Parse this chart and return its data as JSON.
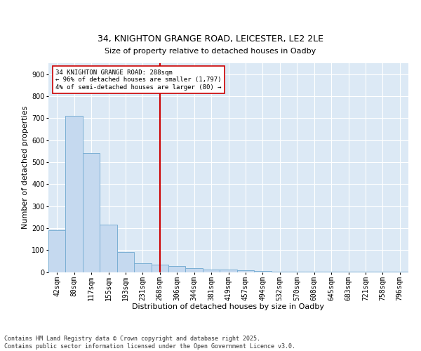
{
  "title1": "34, KNIGHTON GRANGE ROAD, LEICESTER, LE2 2LE",
  "title2": "Size of property relative to detached houses in Oadby",
  "xlabel": "Distribution of detached houses by size in Oadby",
  "ylabel": "Number of detached properties",
  "bar_color": "#c5d9ef",
  "bar_edge_color": "#7bafd4",
  "vline_color": "#cc0000",
  "annotation_text": "34 KNIGHTON GRANGE ROAD: 288sqm\n← 96% of detached houses are smaller (1,797)\n4% of semi-detached houses are larger (80) →",
  "annotation_box_color": "#cc0000",
  "categories": [
    "42sqm",
    "80sqm",
    "117sqm",
    "155sqm",
    "193sqm",
    "231sqm",
    "268sqm",
    "306sqm",
    "344sqm",
    "381sqm",
    "419sqm",
    "457sqm",
    "494sqm",
    "532sqm",
    "570sqm",
    "608sqm",
    "645sqm",
    "683sqm",
    "721sqm",
    "758sqm",
    "796sqm"
  ],
  "values": [
    190,
    710,
    540,
    215,
    90,
    40,
    35,
    28,
    18,
    10,
    10,
    8,
    5,
    3,
    3,
    1,
    1,
    1,
    1,
    1,
    2
  ],
  "ylim": [
    0,
    950
  ],
  "yticks": [
    0,
    100,
    200,
    300,
    400,
    500,
    600,
    700,
    800,
    900
  ],
  "footer": "Contains HM Land Registry data © Crown copyright and database right 2025.\nContains public sector information licensed under the Open Government Licence v3.0.",
  "bg_color": "#dce9f5",
  "fig_bg_color": "#ffffff",
  "title1_fontsize": 9,
  "title2_fontsize": 8,
  "axis_label_fontsize": 8,
  "tick_fontsize": 7,
  "annotation_fontsize": 6.5,
  "footer_fontsize": 6,
  "vline_x_index": 6
}
